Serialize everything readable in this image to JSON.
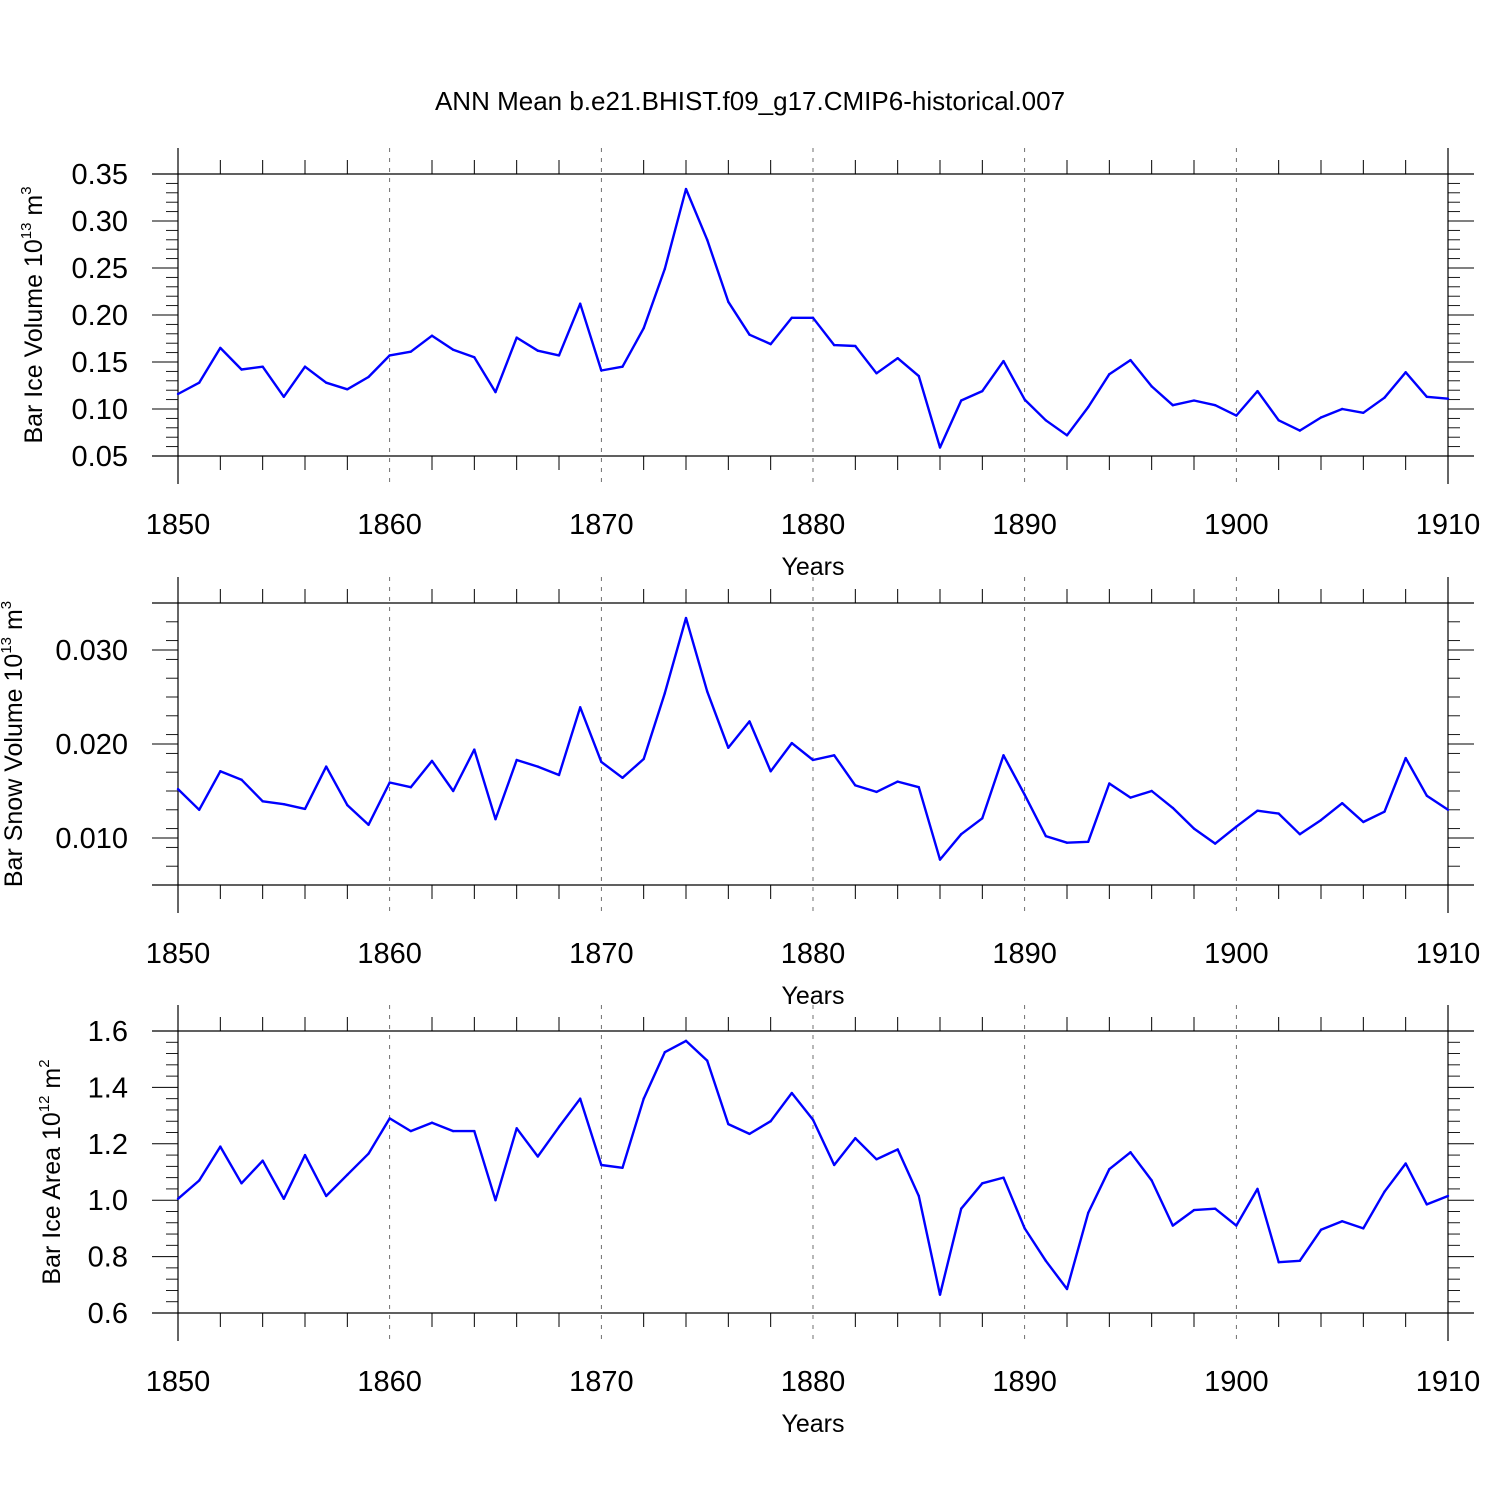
{
  "title": "ANN Mean b.e21.BHIST.f09_g17.CMIP6-historical.007",
  "colors": {
    "line": "#0000ff",
    "axis": "#000000",
    "grid": "#000000"
  },
  "chart_data": [
    {
      "type": "line",
      "ylabel": "Bar Ice Volume 10",
      "ylabel_exp": "13",
      "ylabel_unit": "m",
      "ylabel_unit_exp": "3",
      "xlabel": "Years",
      "xlim": [
        1850,
        1910
      ],
      "ylim": [
        0.05,
        0.35
      ],
      "xticks": [
        "1850",
        "1860",
        "1870",
        "1880",
        "1890",
        "1900",
        "1910"
      ],
      "yticks": [
        "0.05",
        "0.10",
        "0.15",
        "0.20",
        "0.25",
        "0.30",
        "0.35"
      ],
      "grid": "vertical dashed at major x ticks",
      "x": [
        1850,
        1851,
        1852,
        1853,
        1854,
        1855,
        1856,
        1857,
        1858,
        1859,
        1860,
        1861,
        1862,
        1863,
        1864,
        1865,
        1866,
        1867,
        1868,
        1869,
        1870,
        1871,
        1872,
        1873,
        1874,
        1875,
        1876,
        1877,
        1878,
        1879,
        1880,
        1881,
        1882,
        1883,
        1884,
        1885,
        1886,
        1887,
        1888,
        1889,
        1890,
        1891,
        1892,
        1893,
        1894,
        1895,
        1896,
        1897,
        1898,
        1899,
        1900,
        1901,
        1902,
        1903,
        1904,
        1905,
        1906,
        1907,
        1908,
        1909,
        1910
      ],
      "values": [
        0.116,
        0.128,
        0.165,
        0.142,
        0.145,
        0.113,
        0.145,
        0.128,
        0.121,
        0.134,
        0.157,
        0.161,
        0.178,
        0.163,
        0.155,
        0.118,
        0.176,
        0.162,
        0.157,
        0.212,
        0.141,
        0.145,
        0.186,
        0.249,
        0.334,
        0.28,
        0.214,
        0.179,
        0.169,
        0.197,
        0.197,
        0.168,
        0.167,
        0.138,
        0.154,
        0.135,
        0.059,
        0.109,
        0.119,
        0.151,
        0.11,
        0.088,
        0.072,
        0.102,
        0.137,
        0.152,
        0.124,
        0.104,
        0.109,
        0.104,
        0.093,
        0.119,
        0.088,
        0.077,
        0.091,
        0.1,
        0.096,
        0.112,
        0.139,
        0.113,
        0.111
      ]
    },
    {
      "type": "line",
      "ylabel": "Bar Snow Volume 10",
      "ylabel_exp": "13",
      "ylabel_unit": "m",
      "ylabel_unit_exp": "3",
      "xlabel": "Years",
      "xlim": [
        1850,
        1910
      ],
      "ylim": [
        0.005,
        0.035
      ],
      "xticks": [
        "1850",
        "1860",
        "1870",
        "1880",
        "1890",
        "1900",
        "1910"
      ],
      "yticks": [
        "0.010",
        "0.020",
        "0.030"
      ],
      "ytick_values": [
        0.01,
        0.02,
        0.03
      ],
      "grid": "vertical dashed at major x ticks",
      "x": [
        1850,
        1851,
        1852,
        1853,
        1854,
        1855,
        1856,
        1857,
        1858,
        1859,
        1860,
        1861,
        1862,
        1863,
        1864,
        1865,
        1866,
        1867,
        1868,
        1869,
        1870,
        1871,
        1872,
        1873,
        1874,
        1875,
        1876,
        1877,
        1878,
        1879,
        1880,
        1881,
        1882,
        1883,
        1884,
        1885,
        1886,
        1887,
        1888,
        1889,
        1890,
        1891,
        1892,
        1893,
        1894,
        1895,
        1896,
        1897,
        1898,
        1899,
        1900,
        1901,
        1902,
        1903,
        1904,
        1905,
        1906,
        1907,
        1908,
        1909,
        1910
      ],
      "values": [
        0.0152,
        0.013,
        0.0171,
        0.0162,
        0.0139,
        0.0136,
        0.0131,
        0.0176,
        0.0135,
        0.0114,
        0.0159,
        0.0154,
        0.0182,
        0.015,
        0.0194,
        0.012,
        0.0183,
        0.0176,
        0.0167,
        0.0239,
        0.0181,
        0.0164,
        0.0184,
        0.0254,
        0.0334,
        0.0256,
        0.0196,
        0.0224,
        0.0171,
        0.0201,
        0.0183,
        0.0188,
        0.0156,
        0.0149,
        0.016,
        0.0154,
        0.0077,
        0.0104,
        0.0121,
        0.0188,
        0.0146,
        0.0102,
        0.0095,
        0.0096,
        0.0158,
        0.0143,
        0.015,
        0.0132,
        0.011,
        0.0094,
        0.0112,
        0.0129,
        0.0126,
        0.0104,
        0.0119,
        0.0137,
        0.0117,
        0.0128,
        0.0185,
        0.0145,
        0.013
      ]
    },
    {
      "type": "line",
      "ylabel": "Bar Ice Area 10",
      "ylabel_exp": "12",
      "ylabel_unit": "m",
      "ylabel_unit_exp": "2",
      "xlabel": "Years",
      "xlim": [
        1850,
        1910
      ],
      "ylim": [
        0.6,
        1.6
      ],
      "xticks": [
        "1850",
        "1860",
        "1870",
        "1880",
        "1890",
        "1900",
        "1910"
      ],
      "yticks": [
        "0.6",
        "0.8",
        "1.0",
        "1.2",
        "1.4",
        "1.6"
      ],
      "grid": "vertical dashed at major x ticks",
      "x": [
        1850,
        1851,
        1852,
        1853,
        1854,
        1855,
        1856,
        1857,
        1858,
        1859,
        1860,
        1861,
        1862,
        1863,
        1864,
        1865,
        1866,
        1867,
        1868,
        1869,
        1870,
        1871,
        1872,
        1873,
        1874,
        1875,
        1876,
        1877,
        1878,
        1879,
        1880,
        1881,
        1882,
        1883,
        1884,
        1885,
        1886,
        1887,
        1888,
        1889,
        1890,
        1891,
        1892,
        1893,
        1894,
        1895,
        1896,
        1897,
        1898,
        1899,
        1900,
        1901,
        1902,
        1903,
        1904,
        1905,
        1906,
        1907,
        1908,
        1909,
        1910
      ],
      "values": [
        1.005,
        1.07,
        1.19,
        1.06,
        1.14,
        1.005,
        1.16,
        1.015,
        1.09,
        1.165,
        1.29,
        1.245,
        1.275,
        1.245,
        1.245,
        1.0,
        1.255,
        1.155,
        1.26,
        1.36,
        1.125,
        1.115,
        1.36,
        1.525,
        1.565,
        1.495,
        1.27,
        1.235,
        1.28,
        1.38,
        1.285,
        1.125,
        1.22,
        1.145,
        1.18,
        1.015,
        0.665,
        0.97,
        1.06,
        1.08,
        0.9,
        0.785,
        0.685,
        0.955,
        1.11,
        1.17,
        1.07,
        0.91,
        0.965,
        0.97,
        0.91,
        1.04,
        0.78,
        0.785,
        0.895,
        0.925,
        0.9,
        1.03,
        1.13,
        0.985,
        1.015
      ]
    }
  ]
}
